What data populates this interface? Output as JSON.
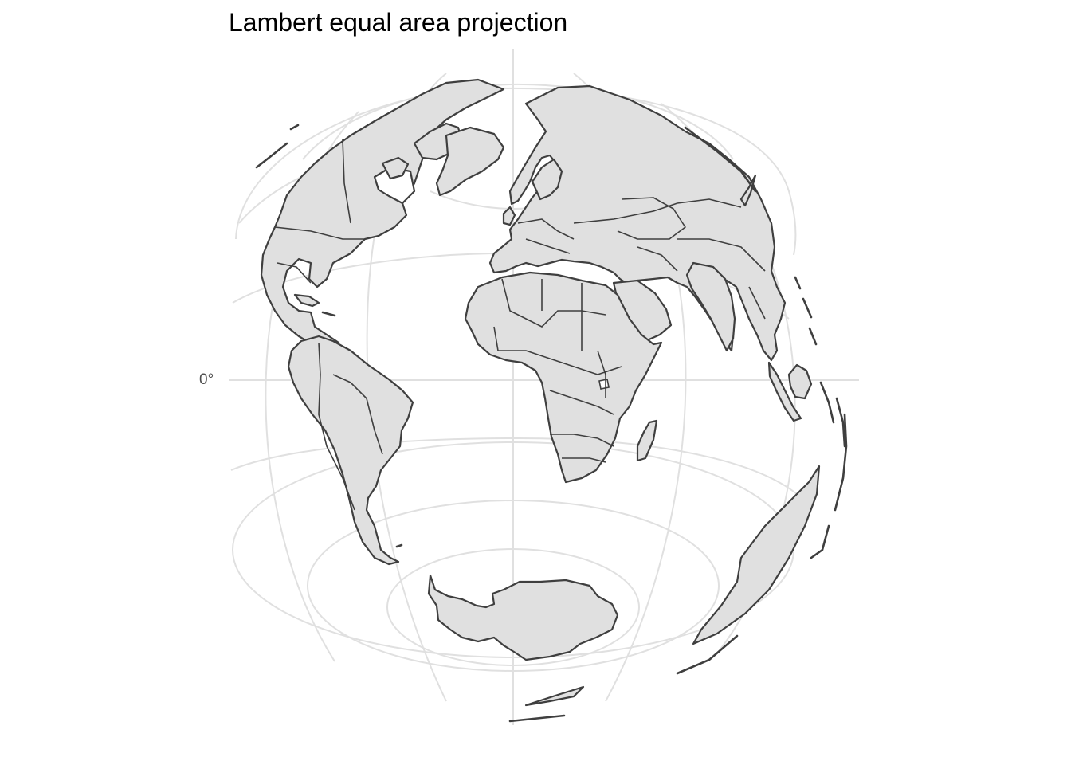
{
  "title": "Lambert equal area projection",
  "axis": {
    "y_label": "0°"
  },
  "map": {
    "projection": "Lambert azimuthal equal-area",
    "land_fill": "#e0e0e0",
    "outline_color": "#3f3f3f",
    "graticule_color": "#e0e0e0",
    "background": "#ffffff"
  }
}
